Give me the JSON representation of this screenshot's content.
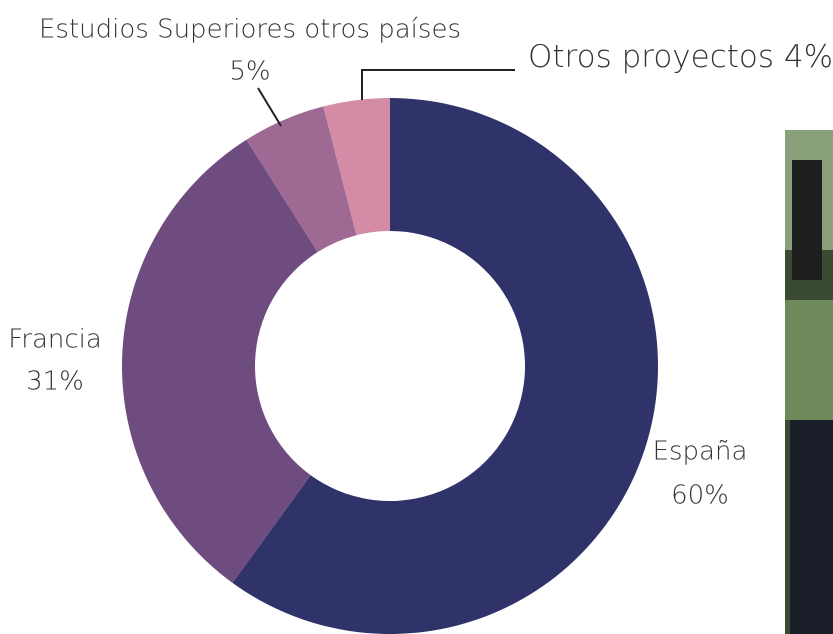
{
  "chart_data": {
    "type": "donut",
    "categories": [
      "España",
      "Francia",
      "Estudios Superiores otros países",
      "Otros proyectos"
    ],
    "values": [
      60,
      31,
      5,
      4
    ],
    "value_labels": [
      "60%",
      "31%",
      "5%",
      "4%"
    ],
    "colors": [
      "#2f3369",
      "#6e4c80",
      "#9e6a93",
      "#d48ca6"
    ]
  }
}
